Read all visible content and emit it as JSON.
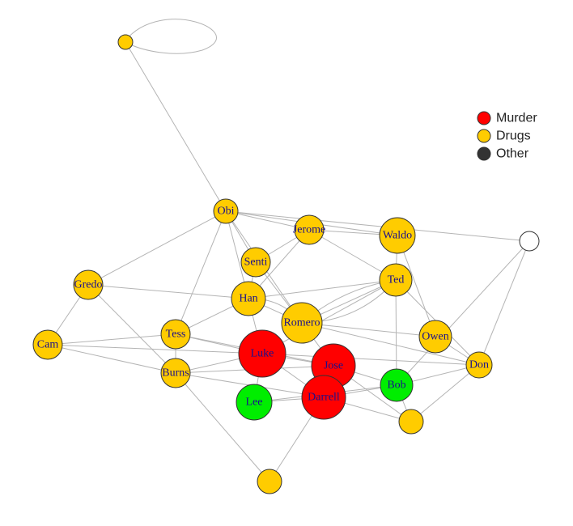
{
  "colors": {
    "murder": "#ff0000",
    "drugs": "#ffcc00",
    "other": "#333333",
    "green": "#00ee00",
    "white": "#ffffff",
    "label": "#1a0f8c",
    "edge": "#b4b4b4"
  },
  "legend": [
    {
      "label": "Murder",
      "color": "#ff0000"
    },
    {
      "label": "Drugs",
      "color": "#ffcc00"
    },
    {
      "label": "Other",
      "color": "#333333"
    }
  ],
  "nodes": [
    {
      "id": "top",
      "label": "",
      "group": "drugs"
    },
    {
      "id": "obi",
      "label": "Obi",
      "group": "drugs"
    },
    {
      "id": "jerome",
      "label": "Jerome",
      "group": "drugs"
    },
    {
      "id": "waldo",
      "label": "Waldo",
      "group": "drugs"
    },
    {
      "id": "white",
      "label": "",
      "group": "white"
    },
    {
      "id": "senti",
      "label": "Senti",
      "group": "drugs"
    },
    {
      "id": "gredo",
      "label": "Gredo",
      "group": "drugs"
    },
    {
      "id": "ted",
      "label": "Ted",
      "group": "drugs"
    },
    {
      "id": "han",
      "label": "Han",
      "group": "drugs"
    },
    {
      "id": "romero",
      "label": "Romero",
      "group": "drugs"
    },
    {
      "id": "tess",
      "label": "Tess",
      "group": "drugs"
    },
    {
      "id": "owen",
      "label": "Owen",
      "group": "drugs"
    },
    {
      "id": "cam",
      "label": "Cam",
      "group": "drugs"
    },
    {
      "id": "luke",
      "label": "Luke",
      "group": "murder"
    },
    {
      "id": "don",
      "label": "Don",
      "group": "drugs"
    },
    {
      "id": "jose",
      "label": "Jose",
      "group": "murder"
    },
    {
      "id": "burns",
      "label": "Burns",
      "group": "drugs"
    },
    {
      "id": "bob",
      "label": "Bob",
      "group": "green"
    },
    {
      "id": "darrell",
      "label": "Darrell",
      "group": "murder"
    },
    {
      "id": "lee",
      "label": "Lee",
      "group": "green"
    },
    {
      "id": "smallright",
      "label": "",
      "group": "drugs"
    },
    {
      "id": "bottom",
      "label": "",
      "group": "drugs"
    }
  ],
  "edges": [
    [
      "top",
      "obi"
    ],
    [
      "obi",
      "gredo"
    ],
    [
      "obi",
      "tess"
    ],
    [
      "obi",
      "senti"
    ],
    [
      "obi",
      "han"
    ],
    [
      "obi",
      "jerome"
    ],
    [
      "obi",
      "waldo"
    ],
    [
      "obi",
      "white"
    ],
    [
      "obi",
      "romero"
    ],
    [
      "jerome",
      "waldo"
    ],
    [
      "jerome",
      "ted"
    ],
    [
      "jerome",
      "han"
    ],
    [
      "jerome",
      "senti"
    ],
    [
      "waldo",
      "ted"
    ],
    [
      "waldo",
      "owen"
    ],
    [
      "white",
      "don"
    ],
    [
      "white",
      "bob"
    ],
    [
      "senti",
      "han"
    ],
    [
      "senti",
      "romero"
    ],
    [
      "gredo",
      "cam"
    ],
    [
      "gredo",
      "han"
    ],
    [
      "gredo",
      "burns"
    ],
    [
      "ted",
      "han"
    ],
    [
      "ted",
      "romero"
    ],
    [
      "ted",
      "luke"
    ],
    [
      "ted",
      "bob"
    ],
    [
      "ted",
      "don"
    ],
    [
      "han",
      "tess"
    ],
    [
      "han",
      "luke"
    ],
    [
      "han",
      "romero"
    ],
    [
      "romero",
      "jose"
    ],
    [
      "romero",
      "don"
    ],
    [
      "romero",
      "owen"
    ],
    [
      "tess",
      "cam"
    ],
    [
      "tess",
      "burns"
    ],
    [
      "tess",
      "luke"
    ],
    [
      "tess",
      "jose"
    ],
    [
      "cam",
      "burns"
    ],
    [
      "cam",
      "luke"
    ],
    [
      "burns",
      "luke"
    ],
    [
      "burns",
      "darrell"
    ],
    [
      "burns",
      "bottom"
    ],
    [
      "burns",
      "jose"
    ],
    [
      "luke",
      "jose"
    ],
    [
      "luke",
      "darrell"
    ],
    [
      "luke",
      "lee"
    ],
    [
      "luke",
      "don"
    ],
    [
      "jose",
      "bob"
    ],
    [
      "jose",
      "darrell"
    ],
    [
      "jose",
      "smallright"
    ],
    [
      "darrell",
      "lee"
    ],
    [
      "darrell",
      "bob"
    ],
    [
      "darrell",
      "bottom"
    ],
    [
      "darrell",
      "smallright"
    ],
    [
      "bob",
      "don"
    ],
    [
      "bob",
      "smallright"
    ],
    [
      "owen",
      "don"
    ],
    [
      "smallright",
      "don"
    ],
    [
      "lee",
      "bob"
    ]
  ],
  "curved_edges": [
    [
      "top",
      "top"
    ],
    [
      "romero",
      "ted"
    ],
    [
      "romero",
      "ted"
    ],
    [
      "han",
      "romero"
    ]
  ]
}
